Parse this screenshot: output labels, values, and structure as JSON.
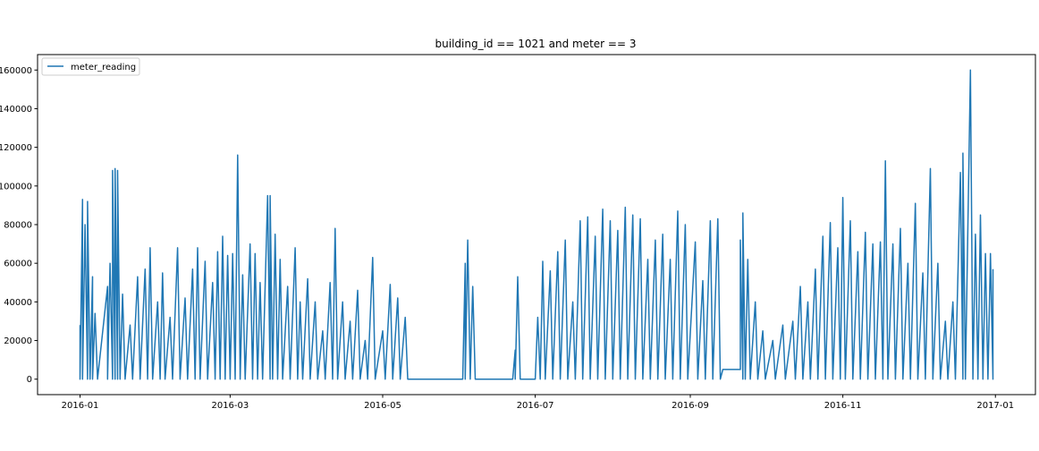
{
  "chart_data": {
    "type": "line",
    "title": "building_id == 1021 and meter == 3",
    "xlabel": "",
    "ylabel": "",
    "x_range": [
      "2015-12-15",
      "2017-01-17"
    ],
    "ylim": [
      -8000,
      168000
    ],
    "x_tick_labels": [
      "2016-01",
      "2016-03",
      "2016-05",
      "2016-07",
      "2016-09",
      "2016-11",
      "2017-01"
    ],
    "x_tick_values": [
      "2016-01-01",
      "2016-03-01",
      "2016-05-01",
      "2016-07-01",
      "2016-09-01",
      "2016-11-01",
      "2017-01-01"
    ],
    "y_ticks": [
      0,
      20000,
      40000,
      60000,
      80000,
      100000,
      120000,
      140000,
      160000
    ],
    "y_tick_labels": [
      "0",
      "20000",
      "40000",
      "60000",
      "80000",
      "100000",
      "120000",
      "140000",
      "160000"
    ],
    "grid": false,
    "legend_position": "upper-left",
    "series": [
      {
        "name": "meter_reading",
        "color": "#1f77b4",
        "points": [
          [
            "2016-01-01",
            28000
          ],
          [
            "2016-01-01",
            0
          ],
          [
            "2016-01-02",
            93000
          ],
          [
            "2016-01-02",
            0
          ],
          [
            "2016-01-03",
            80000
          ],
          [
            "2016-01-04",
            0
          ],
          [
            "2016-01-04",
            92000
          ],
          [
            "2016-01-05",
            0
          ],
          [
            "2016-01-06",
            53000
          ],
          [
            "2016-01-06",
            0
          ],
          [
            "2016-01-07",
            34000
          ],
          [
            "2016-01-08",
            0
          ],
          [
            "2016-01-12",
            48000
          ],
          [
            "2016-01-12",
            0
          ],
          [
            "2016-01-13",
            60000
          ],
          [
            "2016-01-14",
            0
          ],
          [
            "2016-01-14",
            108000
          ],
          [
            "2016-01-15",
            0
          ],
          [
            "2016-01-15",
            109000
          ],
          [
            "2016-01-16",
            0
          ],
          [
            "2016-01-16",
            108000
          ],
          [
            "2016-01-17",
            0
          ],
          [
            "2016-01-18",
            44000
          ],
          [
            "2016-01-19",
            0
          ],
          [
            "2016-01-21",
            28000
          ],
          [
            "2016-01-22",
            0
          ],
          [
            "2016-01-24",
            53000
          ],
          [
            "2016-01-25",
            0
          ],
          [
            "2016-01-27",
            57000
          ],
          [
            "2016-01-28",
            0
          ],
          [
            "2016-01-29",
            68000
          ],
          [
            "2016-01-30",
            0
          ],
          [
            "2016-02-01",
            40000
          ],
          [
            "2016-02-02",
            0
          ],
          [
            "2016-02-03",
            55000
          ],
          [
            "2016-02-04",
            0
          ],
          [
            "2016-02-06",
            32000
          ],
          [
            "2016-02-07",
            0
          ],
          [
            "2016-02-09",
            68000
          ],
          [
            "2016-02-10",
            0
          ],
          [
            "2016-02-12",
            42000
          ],
          [
            "2016-02-13",
            0
          ],
          [
            "2016-02-15",
            57000
          ],
          [
            "2016-02-16",
            0
          ],
          [
            "2016-02-17",
            68000
          ],
          [
            "2016-02-18",
            0
          ],
          [
            "2016-02-20",
            61000
          ],
          [
            "2016-02-21",
            0
          ],
          [
            "2016-02-23",
            50000
          ],
          [
            "2016-02-24",
            0
          ],
          [
            "2016-02-25",
            66000
          ],
          [
            "2016-02-26",
            0
          ],
          [
            "2016-02-27",
            74000
          ],
          [
            "2016-02-28",
            0
          ],
          [
            "2016-02-29",
            64000
          ],
          [
            "2016-03-01",
            0
          ],
          [
            "2016-03-02",
            65000
          ],
          [
            "2016-03-03",
            0
          ],
          [
            "2016-03-04",
            116000
          ],
          [
            "2016-03-05",
            0
          ],
          [
            "2016-03-06",
            54000
          ],
          [
            "2016-03-07",
            0
          ],
          [
            "2016-03-09",
            70000
          ],
          [
            "2016-03-10",
            0
          ],
          [
            "2016-03-11",
            65000
          ],
          [
            "2016-03-12",
            0
          ],
          [
            "2016-03-13",
            50000
          ],
          [
            "2016-03-14",
            0
          ],
          [
            "2016-03-16",
            95000
          ],
          [
            "2016-03-17",
            0
          ],
          [
            "2016-03-17",
            95000
          ],
          [
            "2016-03-18",
            0
          ],
          [
            "2016-03-19",
            75000
          ],
          [
            "2016-03-20",
            0
          ],
          [
            "2016-03-21",
            62000
          ],
          [
            "2016-03-22",
            0
          ],
          [
            "2016-03-24",
            48000
          ],
          [
            "2016-03-25",
            0
          ],
          [
            "2016-03-27",
            68000
          ],
          [
            "2016-03-28",
            0
          ],
          [
            "2016-03-29",
            40000
          ],
          [
            "2016-03-30",
            0
          ],
          [
            "2016-04-01",
            52000
          ],
          [
            "2016-04-02",
            0
          ],
          [
            "2016-04-04",
            40000
          ],
          [
            "2016-04-05",
            0
          ],
          [
            "2016-04-07",
            25000
          ],
          [
            "2016-04-08",
            0
          ],
          [
            "2016-04-10",
            50000
          ],
          [
            "2016-04-11",
            0
          ],
          [
            "2016-04-12",
            78000
          ],
          [
            "2016-04-13",
            0
          ],
          [
            "2016-04-15",
            40000
          ],
          [
            "2016-04-16",
            0
          ],
          [
            "2016-04-18",
            30000
          ],
          [
            "2016-04-19",
            0
          ],
          [
            "2016-04-21",
            46000
          ],
          [
            "2016-04-22",
            0
          ],
          [
            "2016-04-24",
            20000
          ],
          [
            "2016-04-25",
            0
          ],
          [
            "2016-04-27",
            63000
          ],
          [
            "2016-04-28",
            0
          ],
          [
            "2016-05-01",
            25000
          ],
          [
            "2016-05-02",
            0
          ],
          [
            "2016-05-04",
            49000
          ],
          [
            "2016-05-05",
            0
          ],
          [
            "2016-05-07",
            42000
          ],
          [
            "2016-05-08",
            0
          ],
          [
            "2016-05-10",
            32000
          ],
          [
            "2016-05-11",
            0
          ],
          [
            "2016-06-02",
            0
          ],
          [
            "2016-06-03",
            60000
          ],
          [
            "2016-06-03",
            0
          ],
          [
            "2016-06-04",
            72000
          ],
          [
            "2016-06-05",
            0
          ],
          [
            "2016-06-06",
            48000
          ],
          [
            "2016-06-07",
            0
          ],
          [
            "2016-06-22",
            0
          ],
          [
            "2016-06-23",
            15000
          ],
          [
            "2016-06-23",
            0
          ],
          [
            "2016-06-24",
            53000
          ],
          [
            "2016-06-25",
            0
          ],
          [
            "2016-07-01",
            0
          ],
          [
            "2016-07-02",
            32000
          ],
          [
            "2016-07-03",
            0
          ],
          [
            "2016-07-04",
            61000
          ],
          [
            "2016-07-05",
            0
          ],
          [
            "2016-07-07",
            56000
          ],
          [
            "2016-07-08",
            0
          ],
          [
            "2016-07-10",
            66000
          ],
          [
            "2016-07-11",
            0
          ],
          [
            "2016-07-13",
            72000
          ],
          [
            "2016-07-14",
            0
          ],
          [
            "2016-07-16",
            40000
          ],
          [
            "2016-07-17",
            0
          ],
          [
            "2016-07-19",
            82000
          ],
          [
            "2016-07-20",
            0
          ],
          [
            "2016-07-22",
            84000
          ],
          [
            "2016-07-23",
            0
          ],
          [
            "2016-07-25",
            74000
          ],
          [
            "2016-07-26",
            0
          ],
          [
            "2016-07-28",
            88000
          ],
          [
            "2016-07-29",
            0
          ],
          [
            "2016-07-31",
            82000
          ],
          [
            "2016-08-01",
            0
          ],
          [
            "2016-08-03",
            77000
          ],
          [
            "2016-08-04",
            0
          ],
          [
            "2016-08-06",
            89000
          ],
          [
            "2016-08-07",
            0
          ],
          [
            "2016-08-09",
            85000
          ],
          [
            "2016-08-10",
            0
          ],
          [
            "2016-08-12",
            83000
          ],
          [
            "2016-08-13",
            0
          ],
          [
            "2016-08-15",
            62000
          ],
          [
            "2016-08-16",
            0
          ],
          [
            "2016-08-18",
            72000
          ],
          [
            "2016-08-19",
            0
          ],
          [
            "2016-08-21",
            75000
          ],
          [
            "2016-08-22",
            0
          ],
          [
            "2016-08-24",
            62000
          ],
          [
            "2016-08-25",
            0
          ],
          [
            "2016-08-27",
            87000
          ],
          [
            "2016-08-28",
            0
          ],
          [
            "2016-08-30",
            80000
          ],
          [
            "2016-08-31",
            0
          ],
          [
            "2016-09-03",
            71000
          ],
          [
            "2016-09-04",
            0
          ],
          [
            "2016-09-06",
            51000
          ],
          [
            "2016-09-07",
            0
          ],
          [
            "2016-09-09",
            82000
          ],
          [
            "2016-09-10",
            0
          ],
          [
            "2016-09-12",
            83000
          ],
          [
            "2016-09-13",
            0
          ],
          [
            "2016-09-14",
            5000
          ],
          [
            "2016-09-21",
            5000
          ],
          [
            "2016-09-21",
            72000
          ],
          [
            "2016-09-22",
            0
          ],
          [
            "2016-09-22",
            86000
          ],
          [
            "2016-09-23",
            0
          ],
          [
            "2016-09-24",
            62000
          ],
          [
            "2016-09-25",
            0
          ],
          [
            "2016-09-27",
            40000
          ],
          [
            "2016-09-28",
            0
          ],
          [
            "2016-09-30",
            25000
          ],
          [
            "2016-10-01",
            0
          ],
          [
            "2016-10-04",
            20000
          ],
          [
            "2016-10-05",
            0
          ],
          [
            "2016-10-08",
            28000
          ],
          [
            "2016-10-09",
            0
          ],
          [
            "2016-10-12",
            30000
          ],
          [
            "2016-10-13",
            0
          ],
          [
            "2016-10-15",
            48000
          ],
          [
            "2016-10-16",
            0
          ],
          [
            "2016-10-18",
            40000
          ],
          [
            "2016-10-19",
            0
          ],
          [
            "2016-10-21",
            57000
          ],
          [
            "2016-10-22",
            0
          ],
          [
            "2016-10-24",
            74000
          ],
          [
            "2016-10-25",
            0
          ],
          [
            "2016-10-27",
            81000
          ],
          [
            "2016-10-28",
            0
          ],
          [
            "2016-10-30",
            68000
          ],
          [
            "2016-10-31",
            0
          ],
          [
            "2016-11-01",
            94000
          ],
          [
            "2016-11-02",
            0
          ],
          [
            "2016-11-04",
            82000
          ],
          [
            "2016-11-05",
            0
          ],
          [
            "2016-11-07",
            66000
          ],
          [
            "2016-11-08",
            0
          ],
          [
            "2016-11-10",
            76000
          ],
          [
            "2016-11-11",
            0
          ],
          [
            "2016-11-13",
            70000
          ],
          [
            "2016-11-14",
            0
          ],
          [
            "2016-11-16",
            71000
          ],
          [
            "2016-11-17",
            0
          ],
          [
            "2016-11-18",
            113000
          ],
          [
            "2016-11-19",
            0
          ],
          [
            "2016-11-21",
            70000
          ],
          [
            "2016-11-22",
            0
          ],
          [
            "2016-11-24",
            78000
          ],
          [
            "2016-11-25",
            0
          ],
          [
            "2016-11-27",
            60000
          ],
          [
            "2016-11-28",
            0
          ],
          [
            "2016-11-30",
            91000
          ],
          [
            "2016-12-01",
            0
          ],
          [
            "2016-12-03",
            55000
          ],
          [
            "2016-12-04",
            0
          ],
          [
            "2016-12-06",
            109000
          ],
          [
            "2016-12-07",
            0
          ],
          [
            "2016-12-09",
            60000
          ],
          [
            "2016-12-10",
            0
          ],
          [
            "2016-12-12",
            30000
          ],
          [
            "2016-12-13",
            0
          ],
          [
            "2016-12-15",
            40000
          ],
          [
            "2016-12-16",
            0
          ],
          [
            "2016-12-18",
            107000
          ],
          [
            "2016-12-19",
            0
          ],
          [
            "2016-12-19",
            117000
          ],
          [
            "2016-12-20",
            0
          ],
          [
            "2016-12-22",
            160000
          ],
          [
            "2016-12-23",
            0
          ],
          [
            "2016-12-24",
            75000
          ],
          [
            "2016-12-25",
            0
          ],
          [
            "2016-12-26",
            85000
          ],
          [
            "2016-12-27",
            0
          ],
          [
            "2016-12-28",
            65000
          ],
          [
            "2016-12-29",
            0
          ],
          [
            "2016-12-30",
            65000
          ],
          [
            "2016-12-31",
            0
          ],
          [
            "2016-12-31",
            57000
          ]
        ]
      }
    ]
  }
}
